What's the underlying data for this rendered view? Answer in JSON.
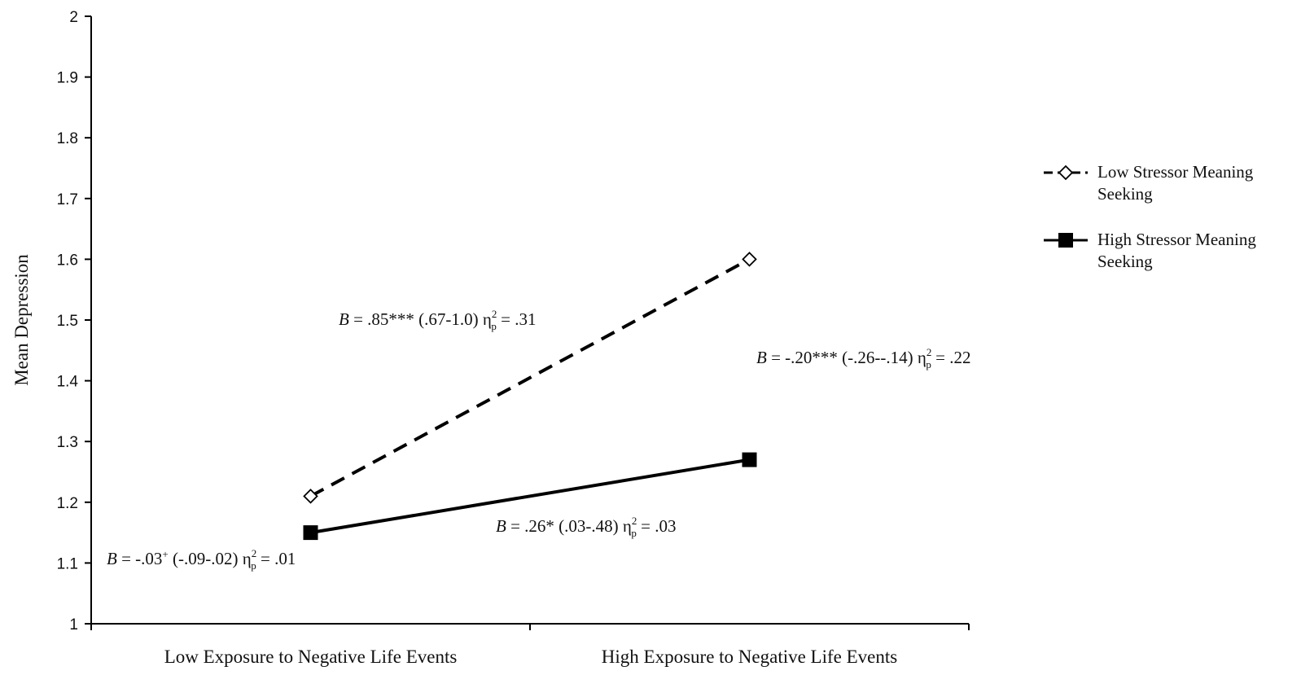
{
  "chart_data": {
    "type": "line",
    "ylabel": "Mean Depression",
    "xlabel": "",
    "categories": [
      "Low Exposure to Negative Life Events",
      "High Exposure to Negative Life Events"
    ],
    "ylim": [
      1,
      2
    ],
    "yticks": [
      "1",
      "1.1",
      "1.2",
      "1.3",
      "1.4",
      "1.5",
      "1.6",
      "1.7",
      "1.8",
      "1.9",
      "2"
    ],
    "grid": false,
    "legend_position": "right",
    "series": [
      {
        "name_lines": [
          "Low Stressor Meaning",
          "Seeking"
        ],
        "values": [
          1.21,
          1.6
        ],
        "line_style": "dashed",
        "marker": "open-diamond",
        "color": "#000000"
      },
      {
        "name_lines": [
          "High Stressor Meaning",
          "Seeking"
        ],
        "values": [
          1.15,
          1.27
        ],
        "line_style": "solid",
        "marker": "filled-square",
        "color": "#000000"
      }
    ],
    "annotations": [
      {
        "B": "B",
        "text": " = .85*** (.67-1.0) η",
        "sup": "2",
        "sub": "p",
        "tail": " = .31"
      },
      {
        "B": "B",
        "text": " = -.20*** (-.26--.14) η",
        "sup": "2",
        "sub": "p",
        "tail": " = .22"
      },
      {
        "B": "B",
        "text": " = .26* (.03-.48) η",
        "sup": "2",
        "sub": "p",
        "tail": " = .03"
      },
      {
        "B": "B",
        "text": " = -.03",
        "sup0": "+",
        "text2": " (-.09-.02) η",
        "sup": "2",
        "sub": "p",
        "tail": " = .01"
      }
    ]
  }
}
